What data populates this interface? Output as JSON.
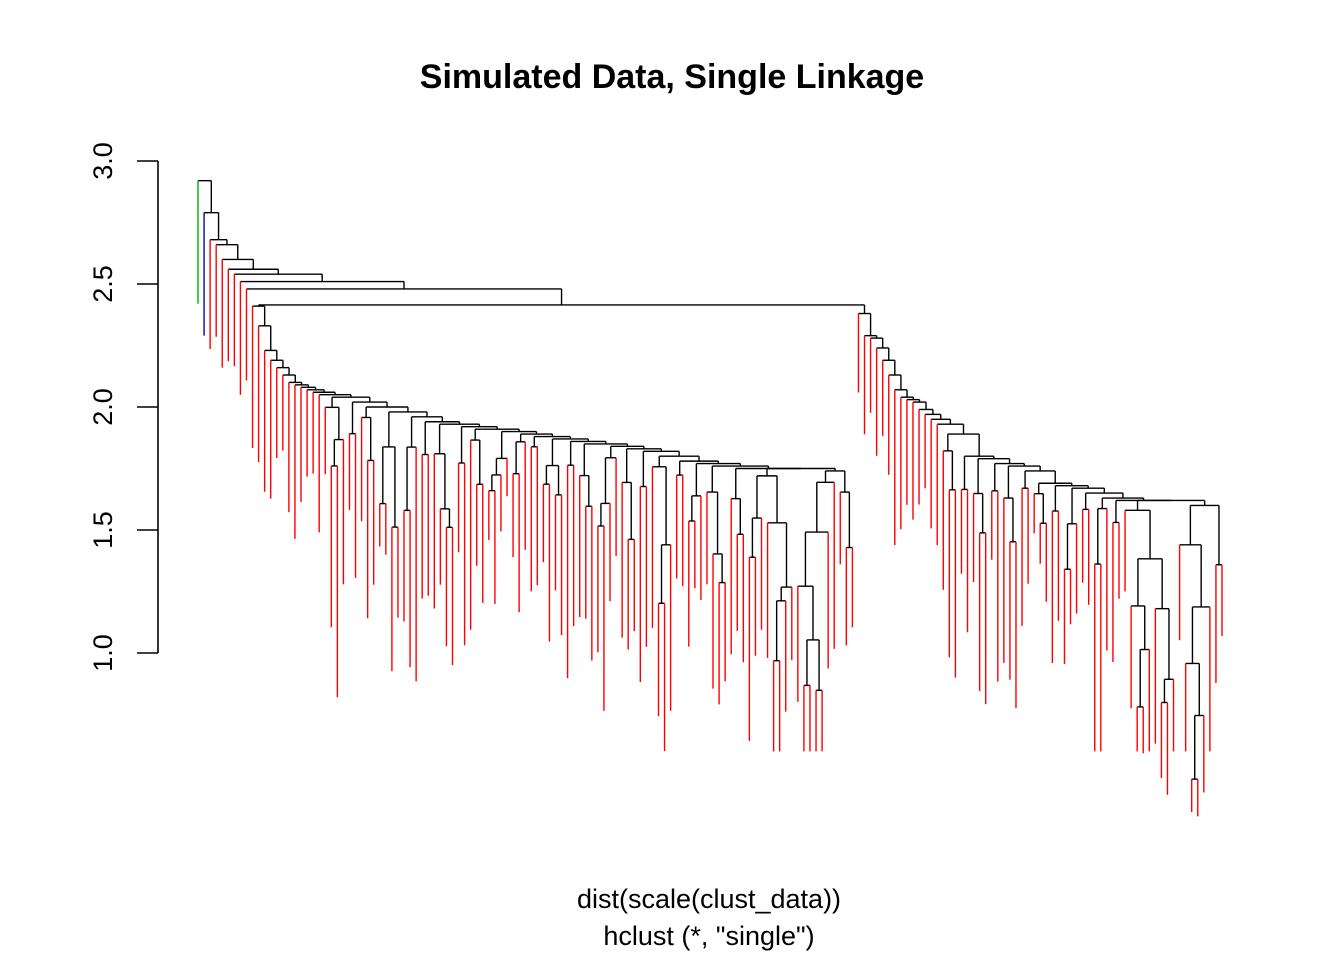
{
  "chart_data": {
    "type": "dendrogram",
    "title": "Simulated Data, Single Linkage",
    "xlabel_line1": "dist(scale(clust_data))",
    "xlabel_line2": "hclust (*, \"single\")",
    "ylim": [
      1.0,
      3.0
    ],
    "yticks": [
      "1.0",
      "1.5",
      "2.0",
      "2.5",
      "3.0"
    ],
    "ytick_values": [
      1.0,
      1.5,
      2.0,
      2.5,
      3.0
    ],
    "grid": false,
    "colors": {
      "branch": "#000000",
      "leaf_default": "#ff0000",
      "leaf_outlier_1": "#00aa00",
      "leaf_outlier_2": "#0000cc"
    },
    "leaf_count": 200,
    "outlier_leaves": [
      {
        "color": "green",
        "join_height": 2.92,
        "leaf_bottom": 2.42
      },
      {
        "color": "blue",
        "join_height": 2.92,
        "leaf_bottom": 2.29
      }
    ],
    "backbone_merge_heights": [
      2.92,
      2.79,
      2.68,
      2.66,
      2.6,
      2.56,
      2.54,
      2.51,
      2.48,
      2.415
    ],
    "left_cluster_merge_heights": [
      2.41,
      2.33,
      2.23,
      2.19,
      2.16,
      2.13,
      2.1,
      2.09,
      2.08,
      2.07,
      2.06,
      2.05,
      2.04,
      2.02,
      2.0,
      1.98,
      1.96,
      1.94,
      1.93,
      1.92,
      1.91,
      1.9,
      1.89,
      1.88,
      1.87,
      1.86,
      1.85,
      1.84,
      1.83,
      1.82,
      1.8,
      1.78,
      1.77,
      1.76,
      1.75
    ],
    "right_cluster_merge_heights": [
      2.38,
      2.29,
      2.28,
      2.24,
      2.19,
      2.13,
      2.07,
      2.04,
      2.03,
      2.02,
      1.99,
      1.97,
      1.95,
      1.93,
      1.89,
      1.8,
      1.79,
      1.77,
      1.76,
      1.74,
      1.69,
      1.68,
      1.67,
      1.65,
      1.63,
      1.62
    ],
    "min_leaf_bottom": 0.6
  }
}
